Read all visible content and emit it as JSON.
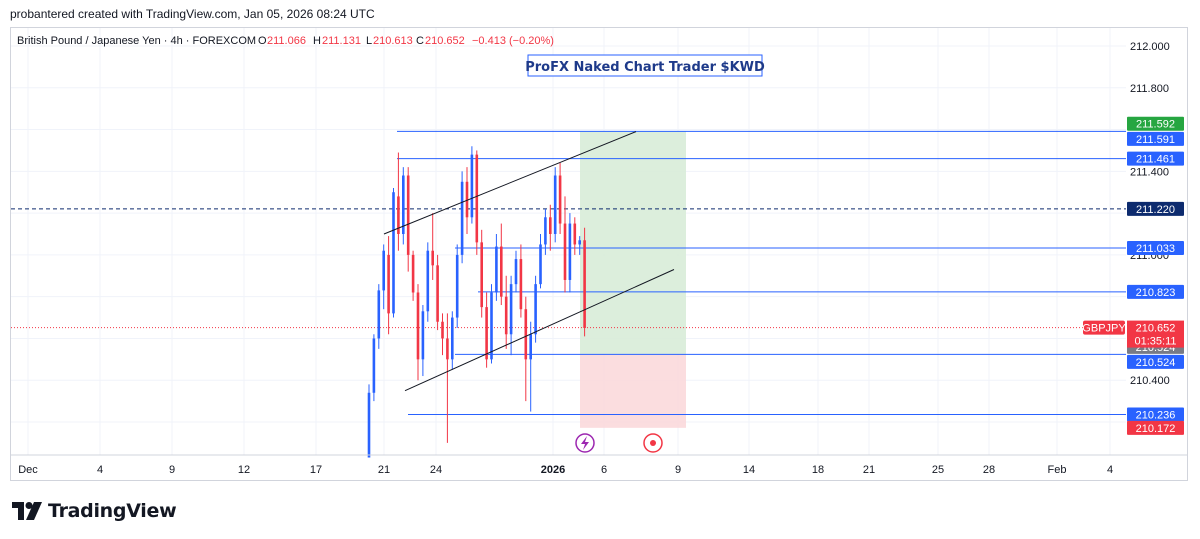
{
  "header": {
    "caption": "probantered created with TradingView.com, Jan 05, 2026 08:24 UTC"
  },
  "legend": {
    "symbol": "British Pound / Japanese Yen · 4h · FOREXCOM",
    "open_label": "O",
    "open": "211.066",
    "high_label": "H",
    "high": "211.131",
    "low_label": "L",
    "low": "210.613",
    "close_label": "C",
    "close": "210.652",
    "change": "−0.413 (−0.20%)"
  },
  "annotation": "ProFX Naked Chart Trader $KWD",
  "brand": "TradingView",
  "colors": {
    "bull": "#2962ff",
    "bear": "#f23645",
    "line_blue": "#2962ff",
    "tp_zone": "#d8ecd8",
    "sl_zone": "#fbd9dc",
    "dark_badge": "#0d2b6e"
  },
  "chart_data": {
    "type": "candlestick",
    "y_axis": {
      "min": 210.03,
      "max": 212.06,
      "ticks": [
        "212.000",
        "211.800",
        "211.400",
        "211.000",
        "210.400"
      ]
    },
    "x_axis": {
      "labels": [
        "Dec",
        "4",
        "9",
        "12",
        "17",
        "21",
        "24",
        "2026",
        "6",
        "9",
        "14",
        "18",
        "21",
        "25",
        "28",
        "Feb",
        "4"
      ]
    },
    "price_lines": [
      {
        "price": 211.591,
        "label": "211.591",
        "style": "solid",
        "color": "#2962ff"
      },
      {
        "price": 211.461,
        "label": "211.461",
        "style": "solid",
        "color": "#2962ff"
      },
      {
        "price": 211.22,
        "label": "211.220",
        "style": "dashed",
        "color": "#0d2b6e"
      },
      {
        "price": 211.033,
        "label": "211.033",
        "style": "solid",
        "color": "#2962ff"
      },
      {
        "price": 210.823,
        "label": "210.823",
        "style": "solid",
        "color": "#2962ff"
      },
      {
        "price": 210.524,
        "label": "210.524",
        "style": "solid",
        "color": "#2962ff"
      },
      {
        "price": 210.236,
        "label": "210.236",
        "style": "solid",
        "color": "#2962ff"
      }
    ],
    "badges": [
      {
        "text": "211.592",
        "price": 211.592,
        "color": "#26a641",
        "offset": -1
      },
      {
        "text": "211.591",
        "price": 211.591,
        "color": "#2962ff",
        "offset": 1
      },
      {
        "text": "211.461",
        "price": 211.461,
        "color": "#2962ff",
        "offset": 0
      },
      {
        "text": "211.220",
        "price": 211.22,
        "color": "#0d2b6e",
        "offset": 0
      },
      {
        "text": "211.033",
        "price": 211.033,
        "color": "#2962ff",
        "offset": 0
      },
      {
        "text": "210.823",
        "price": 210.823,
        "color": "#2962ff",
        "offset": 0
      },
      {
        "text": "210.524",
        "price": 210.524,
        "color": "#787b86",
        "offset": -1
      },
      {
        "text": "210.524",
        "price": 210.524,
        "color": "#2962ff",
        "offset": 1
      },
      {
        "text": "210.236",
        "price": 210.236,
        "color": "#2962ff",
        "offset": 0
      },
      {
        "text": "210.172",
        "price": 210.172,
        "color": "#f23645",
        "offset": 0
      }
    ],
    "last_price": {
      "symbol_tag": "GBPJPY",
      "price": "210.652",
      "countdown": "01:35:11",
      "value": 210.652
    },
    "position": {
      "entry": 210.524,
      "take_profit": 211.591,
      "stop_loss": 210.172
    },
    "channel": {
      "upper": [
        {
          "date_index": 0,
          "price": 211.1
        },
        {
          "date_index": 1,
          "price": 211.59
        }
      ],
      "lower": [
        {
          "date_index": 0,
          "price": 210.35
        },
        {
          "date_index": 1,
          "price": 210.93
        }
      ]
    },
    "candles": [
      [
        210.03,
        210.38,
        210.03,
        210.34
      ],
      [
        210.34,
        210.62,
        210.3,
        210.6
      ],
      [
        210.6,
        210.86,
        210.55,
        210.83
      ],
      [
        210.83,
        211.05,
        210.74,
        211.02
      ],
      [
        211.0,
        211.09,
        210.62,
        210.72
      ],
      [
        210.72,
        211.32,
        210.7,
        211.3
      ],
      [
        211.28,
        211.49,
        211.02,
        211.1
      ],
      [
        211.1,
        211.42,
        211.05,
        211.38
      ],
      [
        211.38,
        211.42,
        210.92,
        211.0
      ],
      [
        211.0,
        211.02,
        210.78,
        210.82
      ],
      [
        210.82,
        210.86,
        210.4,
        210.5
      ],
      [
        210.5,
        210.76,
        210.42,
        210.73
      ],
      [
        210.73,
        211.06,
        210.68,
        211.02
      ],
      [
        211.02,
        211.2,
        210.88,
        210.95
      ],
      [
        210.95,
        211.0,
        210.64,
        210.68
      ],
      [
        210.68,
        210.72,
        210.52,
        210.6
      ],
      [
        210.6,
        210.72,
        210.1,
        210.5
      ],
      [
        210.5,
        210.73,
        210.45,
        210.7
      ],
      [
        210.7,
        211.05,
        210.65,
        211.0
      ],
      [
        211.0,
        211.4,
        210.96,
        211.35
      ],
      [
        211.35,
        211.42,
        211.1,
        211.18
      ],
      [
        211.18,
        211.52,
        211.15,
        211.48
      ],
      [
        211.48,
        211.5,
        211.0,
        211.06
      ],
      [
        211.06,
        211.12,
        210.7,
        210.75
      ],
      [
        210.75,
        210.82,
        210.46,
        210.5
      ],
      [
        210.5,
        210.86,
        210.48,
        210.82
      ],
      [
        210.82,
        211.1,
        210.78,
        211.04
      ],
      [
        211.04,
        211.15,
        210.76,
        210.8
      ],
      [
        210.8,
        210.9,
        210.55,
        210.62
      ],
      [
        210.62,
        210.9,
        210.52,
        210.86
      ],
      [
        210.86,
        211.02,
        210.82,
        210.98
      ],
      [
        210.98,
        211.05,
        210.7,
        210.74
      ],
      [
        210.74,
        210.8,
        210.3,
        210.5
      ],
      [
        210.5,
        210.68,
        210.25,
        210.62
      ],
      [
        210.62,
        210.9,
        210.58,
        210.86
      ],
      [
        210.86,
        211.1,
        210.84,
        211.05
      ],
      [
        211.05,
        211.22,
        211.0,
        211.18
      ],
      [
        211.18,
        211.24,
        211.02,
        211.1
      ],
      [
        211.1,
        211.42,
        211.06,
        211.38
      ],
      [
        211.38,
        211.44,
        211.1,
        211.15
      ],
      [
        211.15,
        211.28,
        210.82,
        210.88
      ],
      [
        210.88,
        211.2,
        210.82,
        211.15
      ],
      [
        211.15,
        211.18,
        211.0,
        211.05
      ],
      [
        211.05,
        211.09,
        211.0,
        211.07
      ],
      [
        211.07,
        211.13,
        210.61,
        210.65
      ]
    ]
  }
}
